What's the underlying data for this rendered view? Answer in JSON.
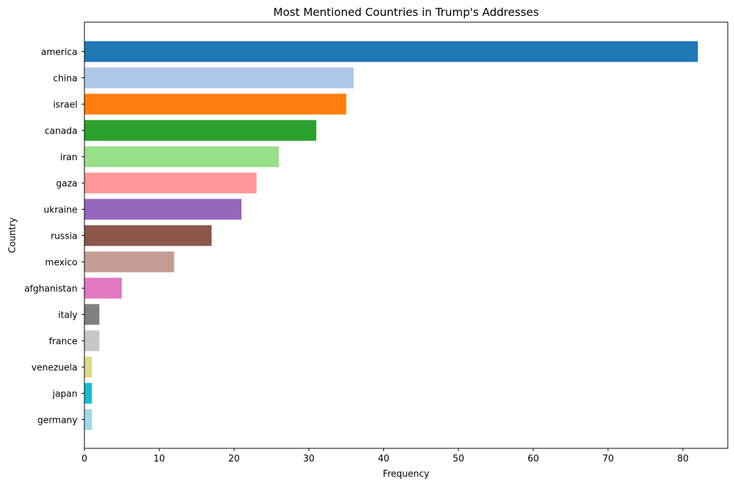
{
  "chart_data": {
    "type": "bar",
    "orientation": "horizontal",
    "title": "Most Mentioned Countries in Trump's Addresses",
    "xlabel": "Frequency",
    "ylabel": "Country",
    "xlim": [
      0,
      86
    ],
    "xticks": [
      0,
      10,
      20,
      30,
      40,
      50,
      60,
      70,
      80
    ],
    "grid": false,
    "categories": [
      "america",
      "china",
      "israel",
      "canada",
      "iran",
      "gaza",
      "ukraine",
      "russia",
      "mexico",
      "afghanistan",
      "italy",
      "france",
      "venezuela",
      "japan",
      "germany"
    ],
    "values": [
      82,
      36,
      35,
      31,
      26,
      23,
      21,
      17,
      12,
      5,
      2,
      2,
      1,
      1,
      1
    ],
    "colors": [
      "#1f77b4",
      "#aec7e8",
      "#ff7f0e",
      "#2ca02c",
      "#98df8a",
      "#ff9896",
      "#9467bd",
      "#8c564b",
      "#c49c94",
      "#e377c2",
      "#7f7f7f",
      "#c7c7c7",
      "#dbdb8d",
      "#17becf",
      "#9edae5"
    ]
  }
}
